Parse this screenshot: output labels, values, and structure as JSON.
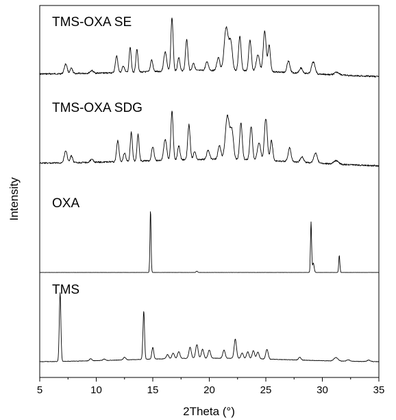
{
  "chart_data": {
    "type": "line",
    "xlabel": "2Theta (°)",
    "ylabel": "Intensity",
    "xlim": [
      5,
      35
    ],
    "x_ticks": [
      "5",
      "10",
      "15",
      "20",
      "25",
      "30",
      "35"
    ],
    "grid": false,
    "legend": "none",
    "series": [
      {
        "name": "TMS-OXA SE",
        "baseline": 0.22,
        "peaks": [
          [
            7.3,
            0.15,
            0.18
          ],
          [
            7.8,
            0.08,
            0.15
          ],
          [
            9.6,
            0.04,
            0.2
          ],
          [
            11.8,
            0.26,
            0.15
          ],
          [
            12.4,
            0.1,
            0.15
          ],
          [
            13.0,
            0.38,
            0.13
          ],
          [
            13.6,
            0.36,
            0.13
          ],
          [
            14.9,
            0.18,
            0.15
          ],
          [
            16.1,
            0.3,
            0.18
          ],
          [
            16.7,
            0.82,
            0.14
          ],
          [
            17.3,
            0.2,
            0.15
          ],
          [
            18.0,
            0.48,
            0.15
          ],
          [
            18.6,
            0.12,
            0.15
          ],
          [
            19.8,
            0.13,
            0.18
          ],
          [
            20.8,
            0.2,
            0.18
          ],
          [
            21.5,
            0.66,
            0.25
          ],
          [
            21.9,
            0.42,
            0.2
          ],
          [
            22.7,
            0.52,
            0.16
          ],
          [
            23.6,
            0.48,
            0.16
          ],
          [
            24.3,
            0.25,
            0.2
          ],
          [
            24.9,
            0.62,
            0.18
          ],
          [
            25.3,
            0.4,
            0.15
          ],
          [
            27.0,
            0.18,
            0.18
          ],
          [
            28.1,
            0.08,
            0.2
          ],
          [
            29.2,
            0.18,
            0.22
          ],
          [
            31.3,
            0.04,
            0.3
          ]
        ]
      },
      {
        "name": "TMS-OXA SDG",
        "baseline": 0.22,
        "peaks": [
          [
            7.3,
            0.17,
            0.18
          ],
          [
            7.8,
            0.1,
            0.15
          ],
          [
            9.6,
            0.04,
            0.2
          ],
          [
            11.9,
            0.3,
            0.15
          ],
          [
            12.5,
            0.12,
            0.15
          ],
          [
            13.1,
            0.42,
            0.13
          ],
          [
            13.7,
            0.38,
            0.13
          ],
          [
            15.0,
            0.2,
            0.15
          ],
          [
            16.1,
            0.3,
            0.18
          ],
          [
            16.7,
            0.7,
            0.14
          ],
          [
            17.3,
            0.2,
            0.15
          ],
          [
            18.2,
            0.5,
            0.15
          ],
          [
            18.7,
            0.12,
            0.15
          ],
          [
            19.9,
            0.13,
            0.18
          ],
          [
            20.9,
            0.2,
            0.18
          ],
          [
            21.6,
            0.62,
            0.25
          ],
          [
            22.0,
            0.4,
            0.2
          ],
          [
            22.8,
            0.52,
            0.16
          ],
          [
            23.7,
            0.48,
            0.16
          ],
          [
            24.4,
            0.25,
            0.2
          ],
          [
            25.0,
            0.6,
            0.18
          ],
          [
            25.5,
            0.3,
            0.15
          ],
          [
            27.1,
            0.2,
            0.18
          ],
          [
            28.2,
            0.08,
            0.2
          ],
          [
            29.4,
            0.14,
            0.22
          ],
          [
            31.2,
            0.05,
            0.3
          ]
        ]
      },
      {
        "name": "OXA",
        "baseline": 0.0,
        "peaks": [
          [
            14.8,
            0.98,
            0.07
          ],
          [
            18.9,
            0.02,
            0.1
          ],
          [
            29.0,
            0.8,
            0.07
          ],
          [
            29.2,
            0.15,
            0.1
          ],
          [
            31.5,
            0.27,
            0.07
          ]
        ]
      },
      {
        "name": "TMS",
        "baseline": 0.08,
        "peaks": [
          [
            6.8,
            1.0,
            0.1
          ],
          [
            9.5,
            0.03,
            0.15
          ],
          [
            10.7,
            0.02,
            0.15
          ],
          [
            12.5,
            0.04,
            0.15
          ],
          [
            14.2,
            0.7,
            0.1
          ],
          [
            15.0,
            0.17,
            0.12
          ],
          [
            16.3,
            0.06,
            0.15
          ],
          [
            16.8,
            0.08,
            0.15
          ],
          [
            17.3,
            0.1,
            0.15
          ],
          [
            18.3,
            0.16,
            0.15
          ],
          [
            18.9,
            0.2,
            0.15
          ],
          [
            19.4,
            0.13,
            0.15
          ],
          [
            20.0,
            0.12,
            0.15
          ],
          [
            21.3,
            0.12,
            0.15
          ],
          [
            22.3,
            0.28,
            0.15
          ],
          [
            22.9,
            0.08,
            0.15
          ],
          [
            23.4,
            0.1,
            0.15
          ],
          [
            23.9,
            0.12,
            0.15
          ],
          [
            24.3,
            0.1,
            0.15
          ],
          [
            25.1,
            0.14,
            0.15
          ],
          [
            28.0,
            0.04,
            0.15
          ],
          [
            31.2,
            0.05,
            0.25
          ],
          [
            32.3,
            0.02,
            0.2
          ],
          [
            34.1,
            0.02,
            0.2
          ]
        ]
      }
    ]
  }
}
